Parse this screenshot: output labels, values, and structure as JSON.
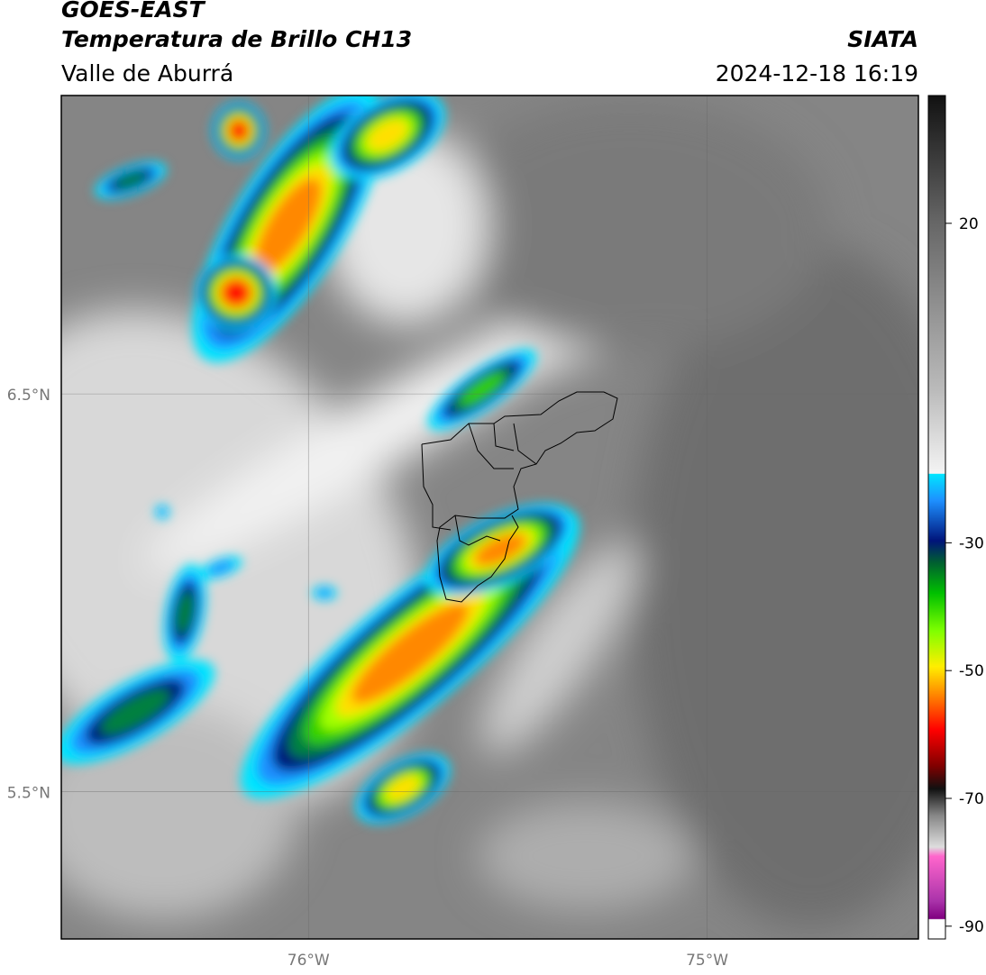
{
  "header": {
    "satellite": "GOES-EAST",
    "product": "Temperatura de Brillo CH13",
    "region": "Valle de Aburrá",
    "source": "SIATA",
    "datetime": "2024-12-18 16:19"
  },
  "map": {
    "xlim": [
      -76.62,
      -74.47
    ],
    "ylim": [
      5.13,
      7.25
    ],
    "xticks": [
      {
        "value": -76,
        "label": "76°W"
      },
      {
        "value": -75,
        "label": "75°W"
      }
    ],
    "yticks": [
      {
        "value": 5.5,
        "label": "5.5°N"
      },
      {
        "value": 6.5,
        "label": "6.5°N"
      }
    ],
    "grid": true
  },
  "colorbar": {
    "lim": [
      -92,
      40
    ],
    "ticks": [
      20,
      -30,
      -50,
      -70,
      -90
    ]
  }
}
